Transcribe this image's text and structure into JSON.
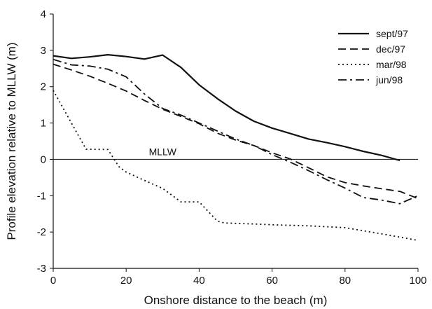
{
  "chart_data": {
    "type": "line",
    "xlabel": "Onshore distance to the beach (m)",
    "ylabel": "Profile elevation relative to MLLW (m)",
    "xlim": [
      0,
      100
    ],
    "ylim": [
      -3,
      4
    ],
    "xticks": [
      0,
      20,
      40,
      60,
      80,
      100
    ],
    "yticks": [
      -3,
      -2,
      -1,
      0,
      1,
      2,
      3,
      4
    ],
    "grid": false,
    "legend_position": "top-right",
    "reference_line": {
      "y": 0,
      "label": "MLLW"
    },
    "series": [
      {
        "name": "sept/97",
        "dash": "solid",
        "color": "#111111",
        "points": [
          [
            0,
            2.85
          ],
          [
            5,
            2.78
          ],
          [
            10,
            2.82
          ],
          [
            15,
            2.88
          ],
          [
            20,
            2.83
          ],
          [
            25,
            2.76
          ],
          [
            30,
            2.87
          ],
          [
            35,
            2.53
          ],
          [
            40,
            2.05
          ],
          [
            45,
            1.67
          ],
          [
            50,
            1.33
          ],
          [
            55,
            1.05
          ],
          [
            60,
            0.86
          ],
          [
            65,
            0.71
          ],
          [
            70,
            0.56
          ],
          [
            75,
            0.46
          ],
          [
            80,
            0.35
          ],
          [
            85,
            0.22
          ],
          [
            90,
            0.11
          ],
          [
            95,
            -0.03
          ]
        ]
      },
      {
        "name": "dec/97",
        "dash": "dashed",
        "color": "#111111",
        "points": [
          [
            0,
            2.62
          ],
          [
            5,
            2.46
          ],
          [
            10,
            2.29
          ],
          [
            15,
            2.09
          ],
          [
            20,
            1.88
          ],
          [
            25,
            1.62
          ],
          [
            30,
            1.38
          ],
          [
            35,
            1.18
          ],
          [
            40,
            0.98
          ],
          [
            45,
            0.72
          ],
          [
            50,
            0.53
          ],
          [
            55,
            0.38
          ],
          [
            60,
            0.18
          ],
          [
            65,
            0.01
          ],
          [
            70,
            -0.23
          ],
          [
            75,
            -0.48
          ],
          [
            80,
            -0.64
          ],
          [
            85,
            -0.73
          ],
          [
            90,
            -0.81
          ],
          [
            95,
            -0.88
          ],
          [
            100,
            -1.08
          ]
        ]
      },
      {
        "name": "mar/98",
        "dash": "dotted",
        "color": "#111111",
        "points": [
          [
            0,
            1.9
          ],
          [
            5,
            1.0
          ],
          [
            9,
            0.28
          ],
          [
            15,
            0.27
          ],
          [
            18,
            -0.2
          ],
          [
            20,
            -0.35
          ],
          [
            25,
            -0.58
          ],
          [
            30,
            -0.8
          ],
          [
            35,
            -1.17
          ],
          [
            40,
            -1.17
          ],
          [
            45,
            -1.7
          ],
          [
            47,
            -1.75
          ],
          [
            55,
            -1.78
          ],
          [
            60,
            -1.8
          ],
          [
            70,
            -1.83
          ],
          [
            80,
            -1.88
          ],
          [
            90,
            -2.05
          ],
          [
            100,
            -2.23
          ]
        ]
      },
      {
        "name": "jun/98",
        "dash": "dashdot",
        "color": "#111111",
        "points": [
          [
            0,
            2.75
          ],
          [
            5,
            2.6
          ],
          [
            10,
            2.57
          ],
          [
            15,
            2.48
          ],
          [
            20,
            2.27
          ],
          [
            25,
            1.8
          ],
          [
            30,
            1.4
          ],
          [
            35,
            1.22
          ],
          [
            40,
            1.0
          ],
          [
            45,
            0.78
          ],
          [
            50,
            0.56
          ],
          [
            55,
            0.38
          ],
          [
            60,
            0.13
          ],
          [
            65,
            -0.08
          ],
          [
            70,
            -0.31
          ],
          [
            75,
            -0.56
          ],
          [
            80,
            -0.79
          ],
          [
            85,
            -1.05
          ],
          [
            90,
            -1.12
          ],
          [
            95,
            -1.22
          ],
          [
            100,
            -1.0
          ]
        ]
      }
    ]
  }
}
